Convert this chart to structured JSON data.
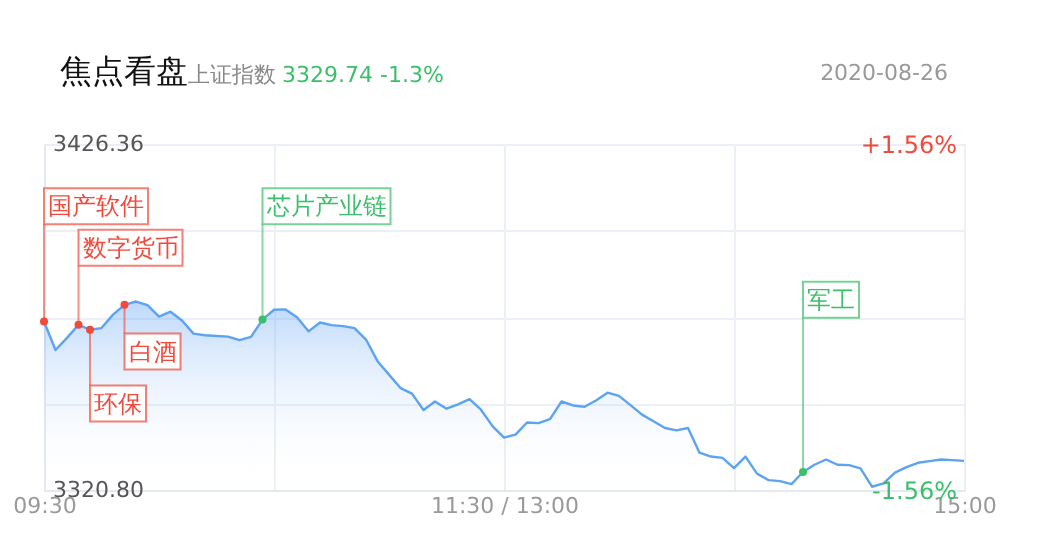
{
  "chart_data": {
    "type": "area",
    "title": "焦点看盘",
    "subtitle": "上证指数",
    "annotations": [
      "3329.74 -1.3%",
      "2020-08-26"
    ],
    "categories": [
      "09:30",
      null,
      null,
      null,
      null,
      null,
      null,
      null,
      null,
      null,
      null,
      null,
      null,
      null,
      null,
      null,
      null,
      null,
      null,
      null,
      null,
      null,
      null,
      null,
      null,
      null,
      null,
      null,
      null,
      null,
      null,
      null,
      null,
      null,
      null,
      null,
      null,
      null,
      null,
      null,
      "11:30 / 13:00",
      null,
      null,
      null,
      null,
      null,
      null,
      null,
      null,
      null,
      null,
      null,
      null,
      null,
      null,
      null,
      null,
      null,
      null,
      null,
      null,
      null,
      null,
      null,
      null,
      null,
      null,
      null,
      null,
      null,
      null,
      null,
      null,
      null,
      null,
      null,
      null,
      null,
      null,
      null,
      "15:00"
    ],
    "ylim": [
      3320.8,
      3426.36
    ],
    "yticks": [
      {
        "value": 3320.8,
        "label": "3320.80"
      },
      {
        "value": 3347.19,
        "label": null
      },
      {
        "value": 3373.58,
        "label": null
      },
      {
        "value": 3399.97,
        "label": null
      },
      {
        "value": 3426.36,
        "label": "3426.36"
      }
    ],
    "y2lim": [
      -1.56,
      1.56
    ],
    "y2ticks": [
      {
        "value": -1.56,
        "label": "-1.56%"
      },
      {
        "value": 1.56,
        "label": "+1.56%"
      }
    ],
    "grid": true,
    "series": [
      {
        "color": "#5ca3f2",
        "values": [
          3372.2,
          3363.5,
          3367.2,
          3371.2,
          3369.7,
          3370.2,
          3374.3,
          3377.3,
          3378.3,
          3377.2,
          3373.7,
          3375.2,
          3372.5,
          3368.5,
          3368.0,
          3367.8,
          3367.6,
          3366.5,
          3367.5,
          3372.8,
          3375.8,
          3375.9,
          3373.5,
          3369.2,
          3371.9,
          3371.1,
          3370.8,
          3370.2,
          3366.7,
          3360.1,
          3356.0,
          3351.9,
          3350.2,
          3345.2,
          3347.8,
          3345.6,
          3346.9,
          3348.5,
          3345.3,
          3340.3,
          3336.8,
          3337.7,
          3341.4,
          3341.2,
          3342.4,
          3347.8,
          3346.6,
          3346.2,
          3348.1,
          3350.5,
          3349.5,
          3346.7,
          3343.8,
          3341.8,
          3339.7,
          3339.0,
          3339.7,
          3332.2,
          3331.0,
          3330.6,
          3327.5,
          3331.0,
          3325.8,
          3323.8,
          3323.5,
          3322.6,
          3326.3,
          3328.5,
          3330.1,
          3328.5,
          3328.4,
          3327.4,
          3321.8,
          3322.8,
          3326.1,
          3327.8,
          3329.1,
          3329.6,
          3330.1,
          3329.9,
          3329.7
        ]
      },
      {
        "type": "scatter",
        "color": "#f04a3c",
        "values": [
          3372.2,
          null,
          null,
          3371.2,
          3369.7,
          null,
          null,
          3377.3,
          null,
          null,
          null,
          null,
          null,
          null,
          null,
          null,
          null,
          null,
          null,
          null,
          null,
          null,
          null,
          null,
          null,
          null,
          null,
          null,
          null,
          null,
          null,
          null,
          null,
          null,
          null,
          null,
          null,
          null,
          null,
          null,
          null,
          null,
          null,
          null,
          null,
          null,
          null,
          null,
          null,
          null,
          null,
          null,
          null,
          null,
          null,
          null,
          null,
          null,
          null,
          null,
          null,
          null,
          null,
          null,
          null,
          null,
          null,
          null,
          null,
          null,
          null,
          null,
          null,
          null,
          null,
          null,
          null,
          null,
          null,
          null,
          null
        ],
        "value_labels": [
          "国产软件",
          null,
          null,
          "数字货币",
          "环保",
          null,
          null,
          "白酒",
          null,
          null,
          null,
          null,
          null,
          null,
          null,
          null,
          null,
          null,
          null,
          null,
          null,
          null,
          null,
          null,
          null,
          null,
          null,
          null,
          null,
          null,
          null,
          null,
          null,
          null,
          null,
          null,
          null,
          null,
          null,
          null,
          null,
          null,
          null,
          null,
          null,
          null,
          null,
          null,
          null,
          null,
          null,
          null,
          null,
          null,
          null,
          null,
          null,
          null,
          null,
          null,
          null,
          null,
          null,
          null,
          null,
          null,
          null,
          null,
          null,
          null,
          null,
          null,
          null,
          null,
          null,
          null,
          null,
          null,
          null,
          null,
          null
        ]
      },
      {
        "type": "scatter",
        "color": "#3cbf6a",
        "values": [
          null,
          null,
          null,
          null,
          null,
          null,
          null,
          null,
          null,
          null,
          null,
          null,
          null,
          null,
          null,
          null,
          null,
          null,
          null,
          3372.8,
          null,
          null,
          null,
          null,
          null,
          null,
          null,
          null,
          null,
          null,
          null,
          null,
          null,
          null,
          null,
          null,
          null,
          null,
          null,
          null,
          null,
          null,
          null,
          null,
          null,
          null,
          null,
          null,
          null,
          null,
          null,
          null,
          null,
          null,
          null,
          null,
          null,
          null,
          null,
          null,
          null,
          null,
          null,
          null,
          null,
          null,
          3326.3,
          null,
          null,
          null,
          null,
          null,
          null,
          null,
          null,
          null,
          null,
          null,
          null,
          null,
          null
        ],
        "value_labels": [
          null,
          null,
          null,
          null,
          null,
          null,
          null,
          null,
          null,
          null,
          null,
          null,
          null,
          null,
          null,
          null,
          null,
          null,
          null,
          "芯片产业链",
          null,
          null,
          null,
          null,
          null,
          null,
          null,
          null,
          null,
          null,
          null,
          null,
          null,
          null,
          null,
          null,
          null,
          null,
          null,
          null,
          null,
          null,
          null,
          null,
          null,
          null,
          null,
          null,
          null,
          null,
          null,
          null,
          null,
          null,
          null,
          null,
          null,
          null,
          null,
          null,
          null,
          null,
          null,
          null,
          null,
          null,
          "军工",
          null,
          null,
          null,
          null,
          null,
          null,
          null,
          null,
          null,
          null,
          null,
          null,
          null,
          null
        ]
      }
    ]
  }
}
